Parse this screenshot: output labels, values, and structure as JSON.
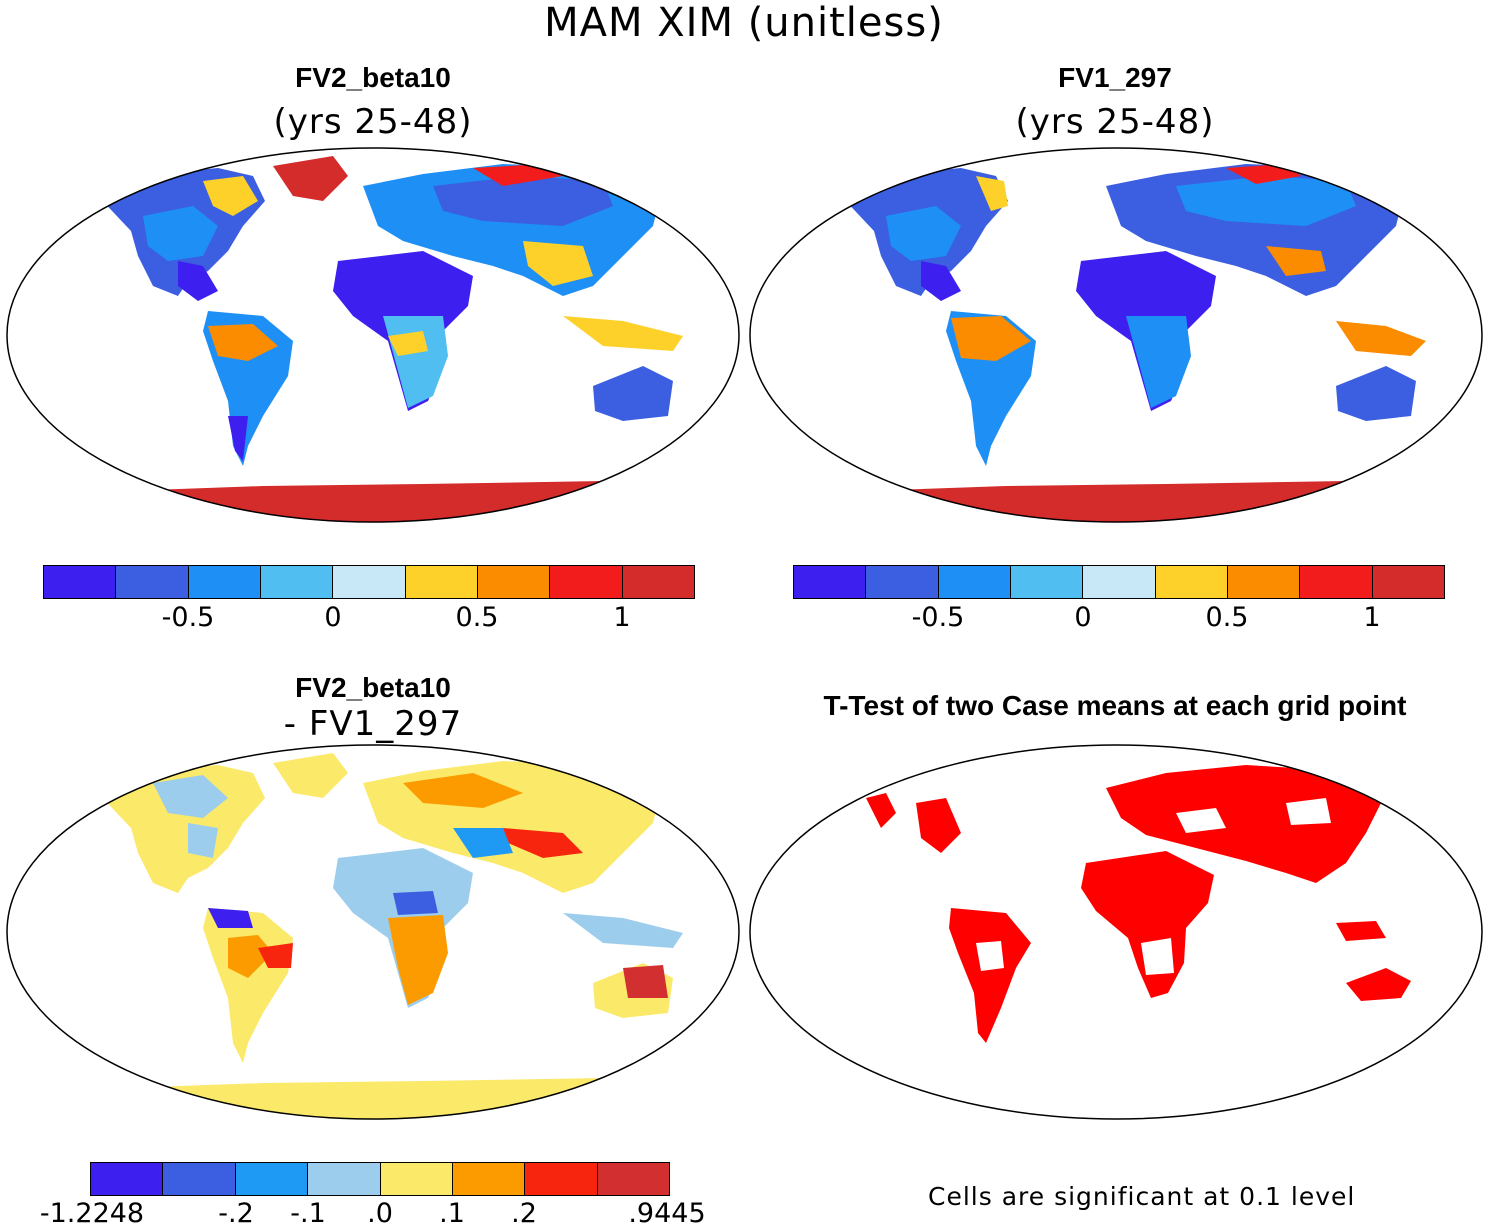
{
  "figure": {
    "title": "MAM XIM (unitless)"
  },
  "panels": [
    {
      "id": "fv2",
      "title": "FV2_beta10",
      "subtitle": "(yrs 25-48)",
      "colorbar": {
        "colors": [
          "#3d1ff0",
          "#3b5fe0",
          "#1e90f5",
          "#50bef0",
          "#c8e8f8",
          "#fdd12a",
          "#fb8c00",
          "#f21c1c",
          "#d42b2b"
        ],
        "ticks": [
          "-0.5",
          "0",
          "0.5",
          "1"
        ]
      }
    },
    {
      "id": "fv1",
      "title": "FV1_297",
      "subtitle": "(yrs 25-48)",
      "colorbar": {
        "colors": [
          "#3d1ff0",
          "#3b5fe0",
          "#1e90f5",
          "#50bef0",
          "#c8e8f8",
          "#fdd12a",
          "#fb8c00",
          "#f21c1c",
          "#d42b2b"
        ],
        "ticks": [
          "-0.5",
          "0",
          "0.5",
          "1"
        ]
      }
    },
    {
      "id": "diff",
      "title": "FV2_beta10",
      "subtitle": "- FV1_297",
      "colorbar": {
        "colors": [
          "#3d1ff0",
          "#3b5fe0",
          "#1e9af5",
          "#9ccdec",
          "#fbe96a",
          "#fb9b00",
          "#f8250e",
          "#d23030"
        ],
        "ticks": [
          "-1.2248",
          "-.2",
          "-.1",
          ".0",
          ".1",
          ".2",
          ".9445"
        ]
      }
    },
    {
      "id": "ttest",
      "title": "T-Test of two Case means at each grid point",
      "note": "Cells are significant at 0.1 level",
      "colors": {
        "significant": "#ff0000"
      }
    }
  ]
}
